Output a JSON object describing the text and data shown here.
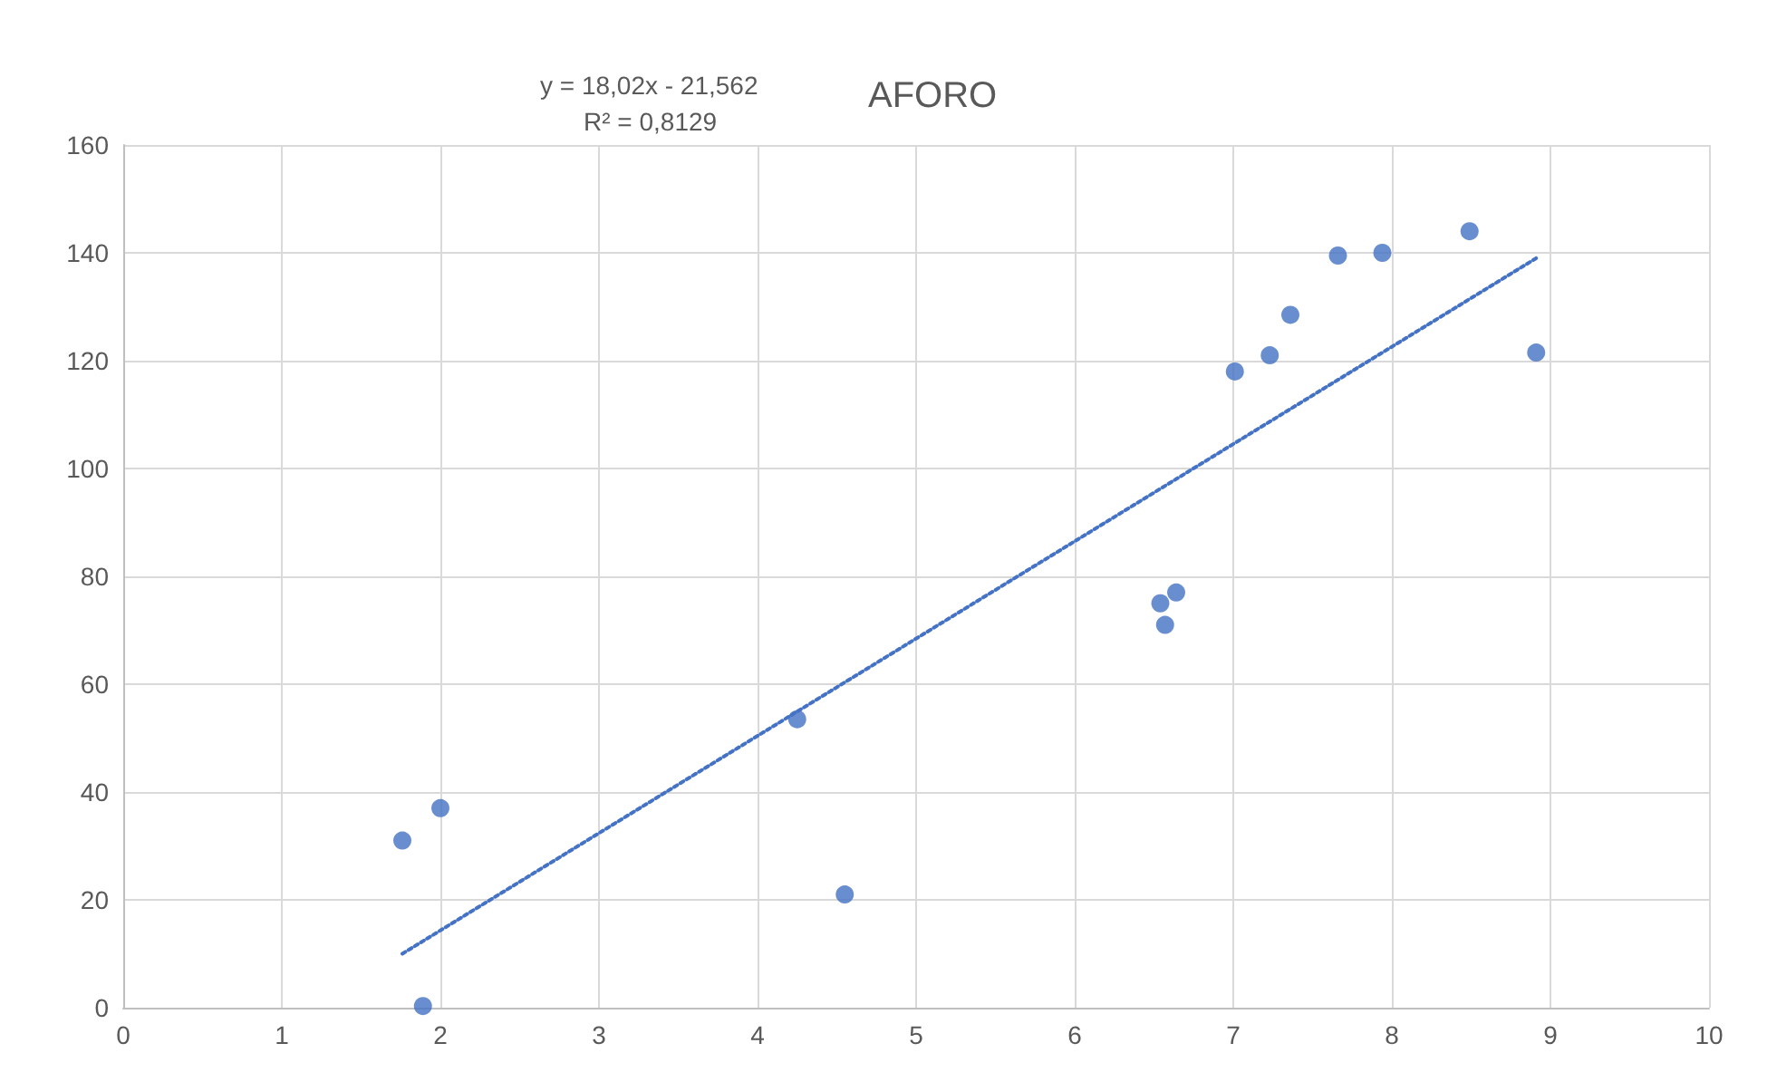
{
  "chart_data": {
    "type": "scatter",
    "title": "AFORO",
    "annotations": [
      "y = 18,02x - 21,562",
      "R² = 0,8129"
    ],
    "xlim": [
      0,
      10
    ],
    "xticks": [
      0,
      1,
      2,
      3,
      4,
      5,
      6,
      7,
      8,
      9,
      10
    ],
    "ylim": [
      0,
      160
    ],
    "yticks": [
      0,
      20,
      40,
      60,
      80,
      100,
      120,
      140,
      160
    ],
    "grid": true,
    "series": [
      {
        "color": "#4472c4",
        "marker": "circle",
        "x": [
          1.76,
          2.0,
          1.89,
          4.25,
          4.55,
          6.54,
          6.57,
          6.64,
          7.01,
          7.23,
          7.36,
          7.66,
          7.94,
          8.49,
          8.91
        ],
        "values": [
          31,
          37,
          0.3,
          53.5,
          21,
          75,
          71,
          77,
          118,
          121,
          128.5,
          139.5,
          140,
          144,
          121.5
        ]
      },
      {
        "type": "line",
        "color": "#4472c4",
        "marker": "none",
        "line_style": "dotted",
        "x": [
          1.76,
          8.91
        ],
        "values": [
          10,
          139
        ]
      }
    ]
  }
}
